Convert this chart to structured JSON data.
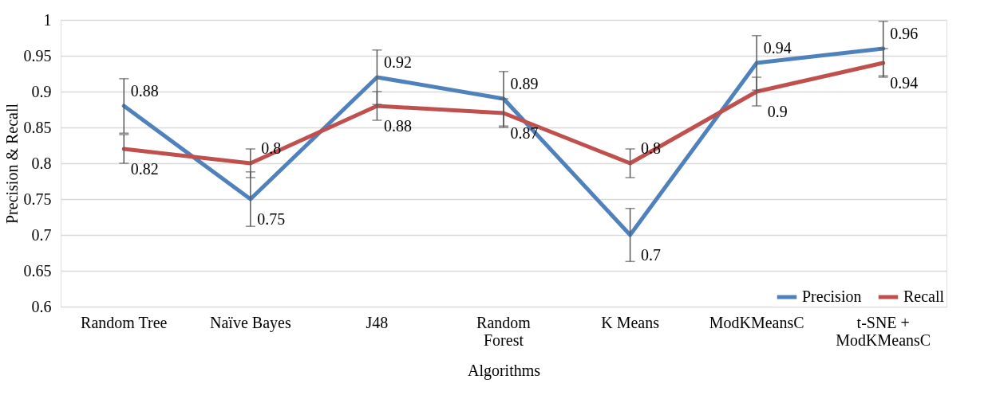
{
  "chart_data": {
    "type": "line",
    "xlabel": "Algorithms",
    "ylabel": "Precision & Recall",
    "categories": [
      "Random Tree",
      "Naïve Bayes",
      "J48",
      "Random Forest",
      "K Means",
      "ModKMeansC",
      "t-SNE + ModKMeansC"
    ],
    "series": [
      {
        "name": "Precision",
        "color": "#4f81bd",
        "values": [
          0.88,
          0.75,
          0.92,
          0.89,
          0.7,
          0.94,
          0.96
        ],
        "errors": [
          0.038,
          0.038,
          0.038,
          0.038,
          0.037,
          0.038,
          0.038
        ]
      },
      {
        "name": "Recall",
        "color": "#c0504d",
        "values": [
          0.82,
          0.8,
          0.88,
          0.87,
          0.8,
          0.9,
          0.94
        ],
        "errors": [
          0.02,
          0.02,
          0.02,
          0.02,
          0.02,
          0.02,
          0.02
        ]
      }
    ],
    "ylim": [
      0.6,
      1
    ],
    "yticks": [
      0.6,
      0.65,
      0.7,
      0.75,
      0.8,
      0.85,
      0.9,
      0.95,
      1
    ],
    "grid": "y",
    "legend": "bottom right",
    "data_labels": true,
    "marker": "none",
    "line_style": "solid"
  }
}
